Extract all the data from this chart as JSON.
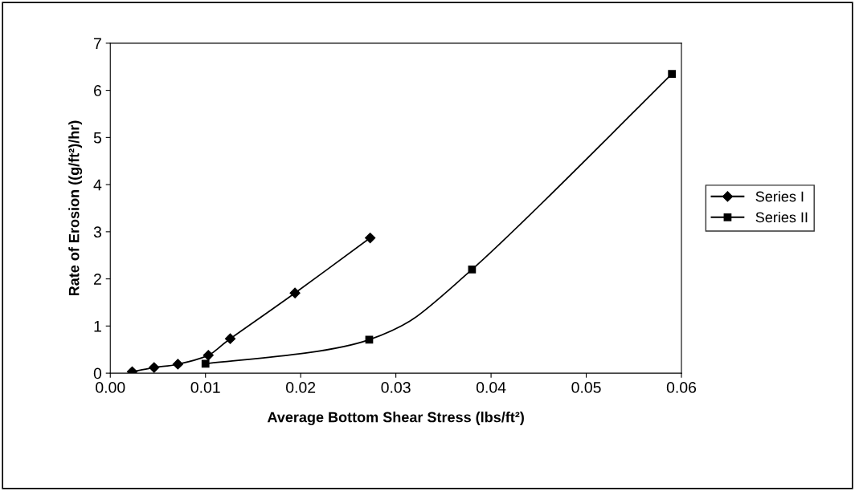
{
  "chart_data": {
    "type": "line",
    "xlabel": "Average Bottom Shear Stress (lbs/ft²)",
    "ylabel": "Rate of Erosion ((g/ft²)/hr)",
    "series": [
      {
        "name": "Series I",
        "color": "#000000",
        "marker": "diamond",
        "x": [
          0.0023,
          0.0046,
          0.0071,
          0.0103,
          0.0126,
          0.0194,
          0.0273
        ],
        "values": [
          0.03,
          0.12,
          0.19,
          0.38,
          0.73,
          1.7,
          2.87
        ]
      },
      {
        "name": "Series II",
        "color": "#000000",
        "marker": "square",
        "x": [
          0.01,
          0.0272,
          0.038,
          0.059
        ],
        "values": [
          0.2,
          0.71,
          2.2,
          6.35
        ]
      }
    ],
    "xlim": [
      0,
      0.06
    ],
    "xticks": [
      {
        "value": 0,
        "label": "0.00"
      },
      {
        "value": 0.01,
        "label": "0.01"
      },
      {
        "value": 0.02,
        "label": "0.02"
      },
      {
        "value": 0.03,
        "label": "0.03"
      },
      {
        "value": 0.04,
        "label": "0.04"
      },
      {
        "value": 0.05,
        "label": "0.05"
      },
      {
        "value": 0.06,
        "label": "0.06"
      }
    ],
    "ylim": [
      0,
      7
    ],
    "yticks": [
      0,
      1,
      2,
      3,
      4,
      5,
      6,
      7
    ],
    "legend": "right",
    "grid": false,
    "line_style": "solid"
  }
}
